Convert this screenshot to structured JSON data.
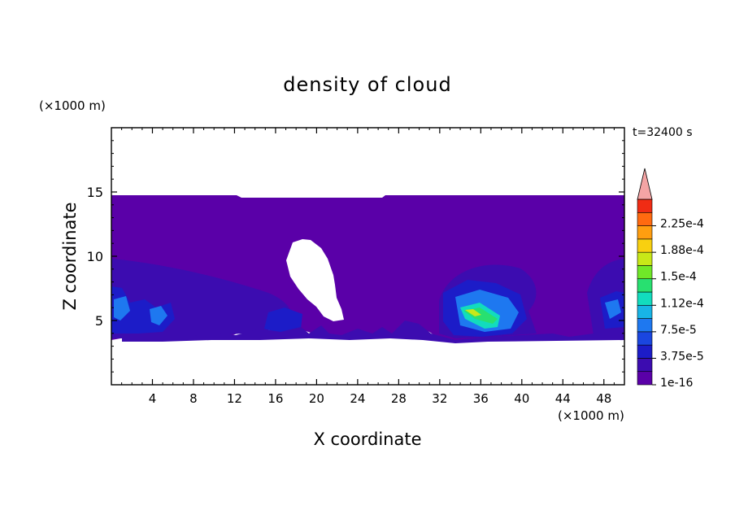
{
  "chart_data": {
    "type": "heatmap",
    "title": "density of cloud",
    "xlabel": "X coordinate",
    "ylabel": "Z coordinate",
    "x_unit": "(×1000 m)",
    "y_unit": "(×1000 m)",
    "time_label": "t=32400 s",
    "xlim": [
      0,
      50
    ],
    "ylim": [
      0,
      20
    ],
    "x_ticks": [
      4,
      8,
      12,
      16,
      20,
      24,
      28,
      32,
      36,
      40,
      44,
      48
    ],
    "y_ticks": [
      5,
      10,
      15
    ],
    "colorbar": {
      "levels": [
        {
          "value": "1e-16",
          "color": "#5a00a8"
        },
        {
          "value": "",
          "color": "#3c0cb0"
        },
        {
          "value": "3.75e-5",
          "color": "#1c1cc8"
        },
        {
          "value": "",
          "color": "#1a46e0"
        },
        {
          "value": "7.5e-5",
          "color": "#1e78f0"
        },
        {
          "value": "",
          "color": "#18b4e6"
        },
        {
          "value": "1.12e-4",
          "color": "#12dcbe"
        },
        {
          "value": "",
          "color": "#28e070"
        },
        {
          "value": "1.5e-4",
          "color": "#70e828"
        },
        {
          "value": "",
          "color": "#c8e818"
        },
        {
          "value": "1.88e-4",
          "color": "#f8d010"
        },
        {
          "value": "",
          "color": "#ff9e10"
        },
        {
          "value": "2.25e-4",
          "color": "#ff6a10"
        },
        {
          "value": "",
          "color": "#f02c14"
        }
      ],
      "overflow_color": "#f4a4a4"
    },
    "regions": [
      {
        "name": "cloud layer",
        "level": 0
      },
      {
        "name": "lower layer left",
        "level": 1
      },
      {
        "name": "lower layer right",
        "level": 1
      },
      {
        "name": "deep cell left",
        "level": 3
      },
      {
        "name": "deep cell center",
        "level": 3
      },
      {
        "name": "core center",
        "level": 7
      },
      {
        "name": "core peak",
        "level": 9
      }
    ]
  }
}
